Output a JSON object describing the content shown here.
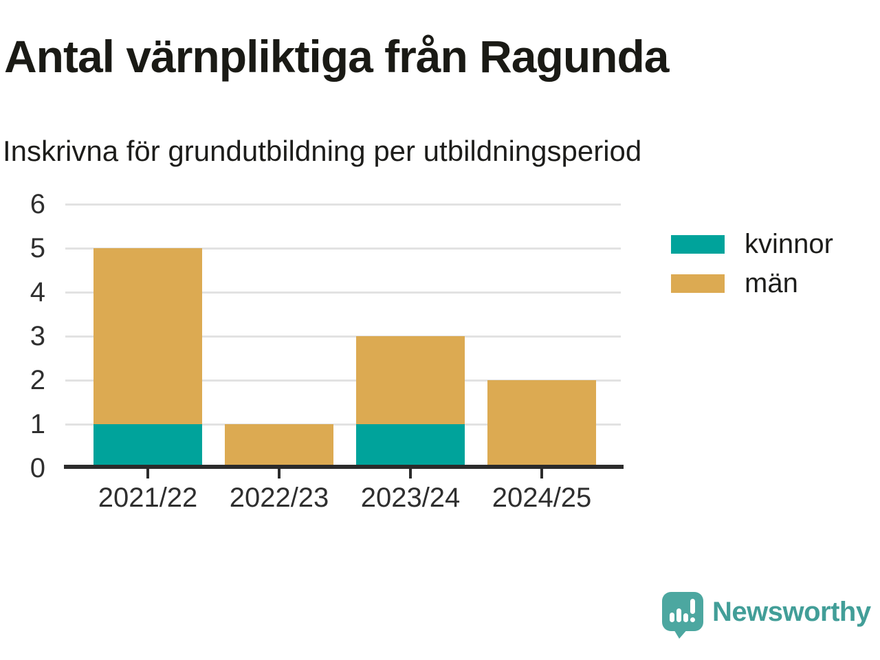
{
  "chart_data": {
    "type": "bar",
    "stacked": true,
    "title": "Antal värnpliktiga från Ragunda",
    "subtitle": "Inskrivna för grundutbildning per utbildningsperiod",
    "categories": [
      "2021/22",
      "2022/23",
      "2023/24",
      "2024/25"
    ],
    "series": [
      {
        "name": "kvinnor",
        "color": "#00a39b",
        "values": [
          1,
          0,
          1,
          0
        ]
      },
      {
        "name": "män",
        "color": "#dcaa52",
        "values": [
          4,
          1,
          2,
          2
        ]
      }
    ],
    "stack_totals": [
      5,
      1,
      3,
      2
    ],
    "xlabel": "",
    "ylabel": "",
    "ylim": [
      0,
      6
    ],
    "yticks": [
      0,
      1,
      2,
      3,
      4,
      5,
      6
    ],
    "grid": "horizontal",
    "grid_color": "#e2e2e2",
    "axis_color": "#2b2b2b",
    "legend_position": "right"
  },
  "branding": {
    "logo_text": "Newsworthy",
    "logo_color": "#429e98",
    "logo_icon": "newsworthy-speech-bubble-bar-chart-icon",
    "logo_icon_color": "#4ca7a0"
  }
}
